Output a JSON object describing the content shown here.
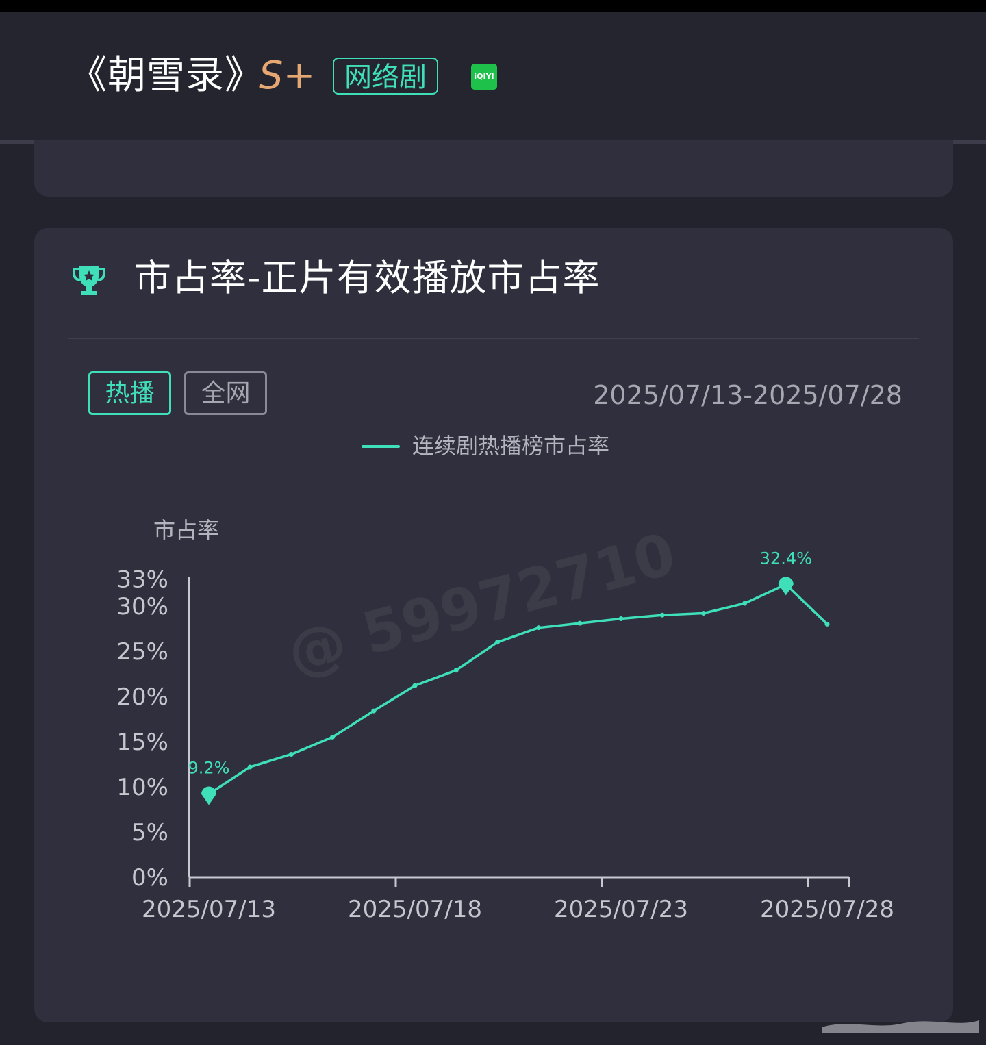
{
  "header": {
    "title": "《朝雪录》",
    "grade": "S+",
    "type_badge": "网络剧",
    "platform_label": "iQIYI",
    "platform_color": "#1ec24a"
  },
  "section": {
    "title": "市占率-正片有效播放市占率",
    "icon": "trophy-icon",
    "tabs": [
      {
        "label": "热播",
        "active": true
      },
      {
        "label": "全网",
        "active": false
      }
    ],
    "date_range": "2025/07/13-2025/07/28"
  },
  "chart_data": {
    "type": "line",
    "ylabel": "市占率",
    "x": [
      "2025/07/13",
      "2025/07/14",
      "2025/07/15",
      "2025/07/16",
      "2025/07/17",
      "2025/07/18",
      "2025/07/19",
      "2025/07/20",
      "2025/07/21",
      "2025/07/22",
      "2025/07/23",
      "2025/07/24",
      "2025/07/25",
      "2025/07/26",
      "2025/07/27",
      "2025/07/28"
    ],
    "x_tick_labels": [
      "2025/07/13",
      "2025/07/18",
      "2025/07/23",
      "2025/07/28"
    ],
    "y_tick_labels": [
      "0%",
      "5%",
      "10%",
      "15%",
      "20%",
      "25%",
      "30%",
      "33%"
    ],
    "y_ticks": [
      0,
      5,
      10,
      15,
      20,
      25,
      30,
      33
    ],
    "ylim": [
      0,
      33
    ],
    "series": [
      {
        "name": "连续剧热播榜市占率",
        "color": "#3fe0b9",
        "values": [
          9.2,
          12.2,
          13.6,
          15.5,
          18.4,
          21.2,
          22.9,
          26.0,
          27.6,
          28.1,
          28.6,
          29.0,
          29.2,
          30.3,
          32.4,
          28.0
        ]
      }
    ],
    "annotations": [
      {
        "x": "2025/07/13",
        "value": 9.2,
        "label": "9.2%"
      },
      {
        "x": "2025/07/27",
        "value": 32.4,
        "label": "32.4%"
      }
    ],
    "legend_position": "top-center",
    "grid": false,
    "axis_color": "#c8c8d0",
    "watermark": "@ 59972710"
  }
}
